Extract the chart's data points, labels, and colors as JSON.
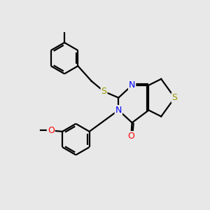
{
  "background_color": "#e8e8e8",
  "bond_color": "#000000",
  "atom_colors": {
    "S": "#999900",
    "N": "#0000ff",
    "O": "#ff0000",
    "C": "#000000"
  },
  "bond_width": 1.6,
  "figsize": [
    3.0,
    3.0
  ],
  "dpi": 100
}
